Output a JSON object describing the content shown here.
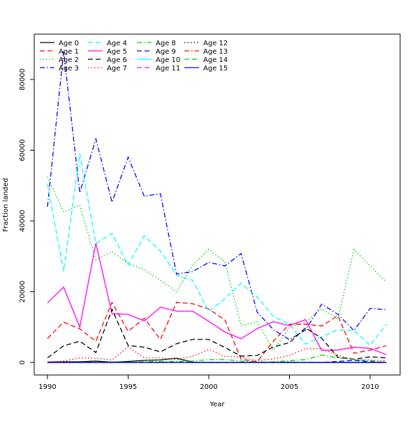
{
  "chart_data": {
    "type": "line",
    "xlabel": "Year",
    "ylabel": "Fraction landed",
    "xlim": [
      1990,
      2011
    ],
    "ylim": [
      -3500,
      92000
    ],
    "xticks": [
      1990,
      1995,
      2000,
      2005,
      2010
    ],
    "yticks": [
      0,
      20000,
      40000,
      60000,
      80000
    ],
    "grid": false,
    "legend_position": "top-left",
    "x": [
      1990,
      1991,
      1992,
      1993,
      1994,
      1995,
      1996,
      1997,
      1998,
      1999,
      2000,
      2001,
      2002,
      2003,
      2004,
      2005,
      2006,
      2007,
      2008,
      2009,
      2010,
      2011
    ],
    "series": [
      {
        "name": "Age 0",
        "color": "#000000",
        "dash": "solid",
        "values": [
          100,
          200,
          200,
          400,
          100,
          300,
          600,
          700,
          1200,
          100,
          0,
          0,
          0,
          0,
          0,
          100,
          0,
          0,
          0,
          0,
          0,
          0
        ]
      },
      {
        "name": "Age 1",
        "color": "#ff0000",
        "dash": "longdash",
        "values": [
          6800,
          11400,
          9500,
          6000,
          17000,
          8800,
          12500,
          6500,
          17000,
          16600,
          15100,
          12000,
          900,
          200,
          6000,
          10800,
          10800,
          10300,
          13200,
          2600,
          3500,
          4700
        ]
      },
      {
        "name": "Age 2",
        "color": "#00cd00",
        "dash": "dotted",
        "values": [
          52500,
          42500,
          44500,
          29000,
          31300,
          28000,
          26200,
          23200,
          20000,
          27500,
          32000,
          28500,
          10400,
          11500,
          3500,
          9900,
          11400,
          15200,
          12300,
          32000,
          27300,
          22700
        ]
      },
      {
        "name": "Age 3",
        "color": "#0000ff",
        "dash": "dashdot",
        "values": [
          44000,
          88000,
          48000,
          63200,
          45300,
          58000,
          47000,
          47700,
          25000,
          25700,
          28300,
          27300,
          30800,
          14200,
          9300,
          6400,
          9200,
          16500,
          13600,
          9000,
          15300,
          14900
        ]
      },
      {
        "name": "Age 4",
        "color": "#00ffff",
        "dash": "longdash",
        "values": [
          50500,
          25800,
          59000,
          33600,
          36500,
          27500,
          35800,
          31500,
          24700,
          23200,
          14400,
          18000,
          22400,
          18500,
          13000,
          10800,
          5200,
          7300,
          9200,
          9000,
          4800,
          10800
        ]
      },
      {
        "name": "Age 5",
        "color": "#ff00ff",
        "dash": "solid",
        "values": [
          16800,
          21300,
          10000,
          33700,
          13800,
          13600,
          11700,
          15600,
          14500,
          14500,
          11600,
          8600,
          6700,
          9600,
          11500,
          10400,
          12100,
          3400,
          3500,
          4300,
          4000,
          2200
        ]
      },
      {
        "name": "Age 6",
        "color": "#000000",
        "dash": "longdash",
        "values": [
          1300,
          4700,
          6000,
          2800,
          15000,
          4800,
          4300,
          3000,
          5300,
          6500,
          6500,
          4200,
          1800,
          2000,
          4400,
          5600,
          9800,
          6800,
          1500,
          900,
          1600,
          1300
        ]
      },
      {
        "name": "Age 7",
        "color": "#ff0000",
        "dash": "dotted",
        "values": [
          200,
          400,
          1300,
          1200,
          700,
          4400,
          1300,
          1300,
          800,
          1800,
          3700,
          1700,
          1600,
          500,
          1000,
          2000,
          3900,
          3900,
          2100,
          700,
          700,
          500
        ]
      },
      {
        "name": "Age 8",
        "color": "#00cd00",
        "dash": "dashdot",
        "values": [
          0,
          0,
          0,
          0,
          200,
          100,
          200,
          300,
          300,
          400,
          800,
          800,
          400,
          100,
          200,
          500,
          800,
          2100,
          1300,
          800,
          500,
          0
        ]
      },
      {
        "name": "Age 9",
        "color": "#0000ff",
        "dash": "longdash",
        "values": [
          0,
          0,
          0,
          0,
          0,
          0,
          0,
          0,
          0,
          0,
          0,
          0,
          0,
          0,
          0,
          0,
          0,
          0,
          300,
          600,
          200,
          0
        ]
      },
      {
        "name": "Age 10",
        "color": "#00ffff",
        "dash": "solid",
        "values": [
          0,
          0,
          0,
          0,
          0,
          0,
          0,
          0,
          0,
          0,
          0,
          0,
          0,
          0,
          0,
          0,
          0,
          0,
          0,
          0,
          0,
          0
        ]
      },
      {
        "name": "Age 11",
        "color": "#ff00ff",
        "dash": "longdash",
        "values": [
          0,
          0,
          0,
          0,
          0,
          0,
          0,
          0,
          0,
          0,
          0,
          0,
          0,
          0,
          0,
          0,
          0,
          0,
          0,
          0,
          0,
          0
        ]
      },
      {
        "name": "Age 12",
        "color": "#000000",
        "dash": "dotted",
        "values": [
          0,
          0,
          0,
          0,
          0,
          0,
          0,
          0,
          0,
          0,
          0,
          0,
          0,
          0,
          0,
          0,
          0,
          0,
          0,
          0,
          0,
          0
        ]
      },
      {
        "name": "Age 13",
        "color": "#ff0000",
        "dash": "dashdot",
        "values": [
          0,
          0,
          0,
          0,
          0,
          0,
          0,
          0,
          0,
          0,
          0,
          0,
          0,
          0,
          0,
          0,
          0,
          0,
          0,
          0,
          0,
          0
        ]
      },
      {
        "name": "Age 14",
        "color": "#00cd00",
        "dash": "longdash",
        "values": [
          0,
          0,
          0,
          0,
          0,
          0,
          0,
          0,
          0,
          0,
          0,
          0,
          0,
          0,
          0,
          0,
          0,
          0,
          0,
          0,
          0,
          0
        ]
      },
      {
        "name": "Age 15",
        "color": "#0000ff",
        "dash": "solid",
        "values": [
          0,
          0,
          0,
          0,
          0,
          0,
          0,
          0,
          0,
          0,
          0,
          0,
          0,
          0,
          0,
          0,
          0,
          0,
          0,
          0,
          0,
          0
        ]
      }
    ]
  }
}
